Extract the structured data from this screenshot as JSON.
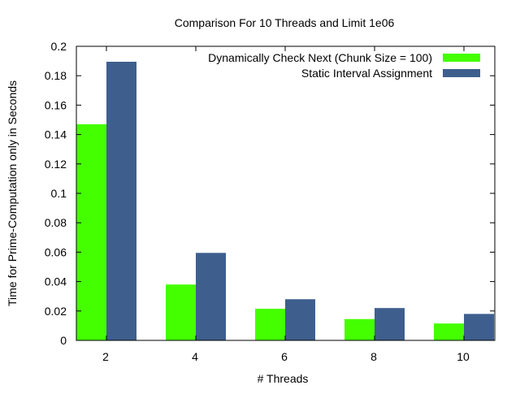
{
  "chart_data": {
    "type": "bar",
    "title": "Comparison For 10 Threads and Limit 1e06",
    "xlabel": "# Threads",
    "ylabel": "Time for Prime-Computation only in Seconds",
    "categories": [
      "2",
      "4",
      "6",
      "8",
      "10"
    ],
    "ylim": [
      0,
      0.2
    ],
    "yticks": [
      "0",
      "0.02",
      "0.04",
      "0.06",
      "0.08",
      "0.1",
      "0.12",
      "0.14",
      "0.16",
      "0.18",
      "0.2"
    ],
    "grid": false,
    "legend_position": "top-right",
    "series": [
      {
        "name": "Dynamically Check Next (Chunk Size = 100)",
        "color": "#44ff00",
        "values": [
          0.147,
          0.038,
          0.0215,
          0.0145,
          0.0115
        ]
      },
      {
        "name": "Static Interval Assignment",
        "color": "#3e5f8e",
        "values": [
          0.1895,
          0.0595,
          0.028,
          0.022,
          0.018
        ]
      }
    ]
  }
}
